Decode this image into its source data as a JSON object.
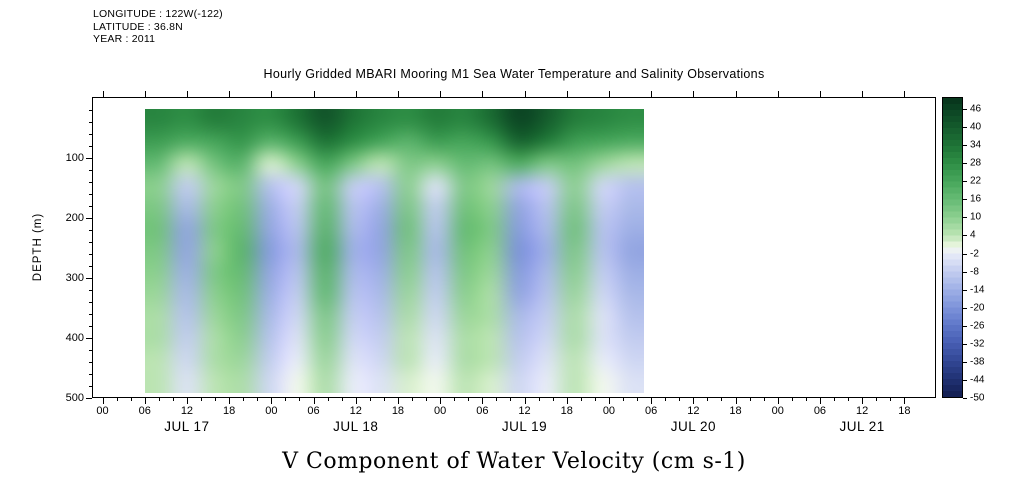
{
  "header": {
    "longitude": "LONGITUDE : 122W(-122)",
    "latitude": "LATITUDE : 36.8N",
    "year": "YEAR : 2011"
  },
  "title": "Hourly Gridded MBARI Mooring M1 Sea Water Temperature and Salinity Observations",
  "caption": "V Component of Water Velocity (cm s-1)",
  "axes": {
    "y_label": "DEPTH (m)",
    "y_ticks": [
      100,
      200,
      300,
      400,
      500
    ],
    "x_hour_labels": [
      "00",
      "06",
      "12",
      "18"
    ],
    "day_labels": [
      "JUL 17",
      "JUL 18",
      "JUL 19",
      "JUL 20",
      "JUL 21"
    ]
  },
  "colorbar": {
    "ticks": [
      46,
      40,
      34,
      28,
      22,
      16,
      10,
      4,
      -2,
      -8,
      -14,
      -20,
      -26,
      -32,
      -38,
      -44,
      -50
    ],
    "vmin": -50,
    "vmax": 50,
    "stops": [
      {
        "v": 50,
        "c": "#07331b"
      },
      {
        "v": 46,
        "c": "#0b4423"
      },
      {
        "v": 40,
        "c": "#155c2d"
      },
      {
        "v": 34,
        "c": "#1e7436"
      },
      {
        "v": 28,
        "c": "#2f8f46"
      },
      {
        "v": 22,
        "c": "#47a65b"
      },
      {
        "v": 16,
        "c": "#66bb74"
      },
      {
        "v": 10,
        "c": "#8ccf90"
      },
      {
        "v": 4,
        "c": "#bce4b4"
      },
      {
        "v": 1,
        "c": "#e4f4da"
      },
      {
        "v": 0,
        "c": "#f2f8ee"
      },
      {
        "v": -2,
        "c": "#e8ecf8"
      },
      {
        "v": -8,
        "c": "#c3cdf0"
      },
      {
        "v": -14,
        "c": "#9fb0e6"
      },
      {
        "v": -20,
        "c": "#7d93da"
      },
      {
        "v": -26,
        "c": "#5f77c9"
      },
      {
        "v": -32,
        "c": "#475eb3"
      },
      {
        "v": -38,
        "c": "#324795"
      },
      {
        "v": -44,
        "c": "#203173"
      },
      {
        "v": -50,
        "c": "#111c4f"
      }
    ]
  },
  "chart_data": {
    "type": "heatmap",
    "title": "Hourly Gridded MBARI Mooring M1 Sea Water Temperature and Salinity Observations",
    "variable": "V Component of Water Velocity",
    "units": "cm s-1",
    "year": 2011,
    "days": [
      "JUL 17",
      "JUL 18",
      "JUL 19",
      "JUL 20",
      "JUL 21"
    ],
    "x_range_hours": [
      0,
      114
    ],
    "depth_range_m": [
      0,
      500
    ],
    "value_range": [
      -50,
      50
    ],
    "x_hours_since_jul17": [
      6,
      10,
      14,
      18,
      22,
      26,
      30,
      34,
      38,
      42,
      46,
      50,
      54,
      58,
      62,
      66,
      70,
      74
    ],
    "depths_m": [
      18,
      60,
      100,
      140,
      180,
      220,
      260,
      300,
      340,
      380,
      420,
      460,
      492
    ],
    "values_cm_s": [
      [
        30,
        28,
        32,
        30,
        28,
        34,
        42,
        34,
        30,
        28,
        32,
        30,
        36,
        46,
        40,
        32,
        30,
        28
      ],
      [
        24,
        20,
        22,
        26,
        18,
        24,
        34,
        28,
        22,
        18,
        24,
        22,
        26,
        38,
        32,
        24,
        22,
        20
      ],
      [
        16,
        4,
        14,
        18,
        2,
        10,
        22,
        12,
        4,
        12,
        10,
        16,
        14,
        20,
        12,
        14,
        8,
        4
      ],
      [
        10,
        -8,
        8,
        12,
        -10,
        -6,
        14,
        -8,
        -10,
        10,
        -4,
        12,
        8,
        -12,
        -8,
        10,
        -6,
        -10
      ],
      [
        12,
        -12,
        10,
        14,
        -14,
        -8,
        16,
        -10,
        -14,
        12,
        -8,
        14,
        10,
        -16,
        -10,
        12,
        -8,
        -12
      ],
      [
        14,
        -16,
        12,
        16,
        -16,
        -10,
        18,
        -12,
        -16,
        14,
        -10,
        16,
        12,
        -18,
        -12,
        14,
        -10,
        -14
      ],
      [
        12,
        -16,
        10,
        18,
        -18,
        -12,
        20,
        -14,
        -16,
        12,
        -12,
        14,
        10,
        -20,
        -14,
        12,
        -10,
        -16
      ],
      [
        10,
        -14,
        12,
        16,
        -16,
        -10,
        18,
        -12,
        -14,
        10,
        -10,
        12,
        8,
        -18,
        -12,
        10,
        -8,
        -14
      ],
      [
        8,
        -12,
        10,
        14,
        -14,
        -8,
        16,
        -10,
        -12,
        8,
        -8,
        10,
        6,
        -16,
        -10,
        8,
        -6,
        -12
      ],
      [
        6,
        -10,
        8,
        12,
        -12,
        -6,
        12,
        -8,
        -10,
        6,
        -6,
        8,
        6,
        -12,
        -8,
        6,
        -4,
        -10
      ],
      [
        6,
        -8,
        6,
        10,
        -10,
        -4,
        10,
        -6,
        -8,
        4,
        -4,
        6,
        4,
        -10,
        -6,
        6,
        -4,
        -8
      ],
      [
        4,
        -6,
        6,
        8,
        -8,
        -2,
        8,
        -4,
        -6,
        4,
        -2,
        6,
        4,
        -8,
        -4,
        4,
        -2,
        -6
      ],
      [
        4,
        -4,
        4,
        6,
        -6,
        0,
        6,
        -2,
        -4,
        2,
        0,
        4,
        2,
        -6,
        -2,
        4,
        0,
        -4
      ]
    ],
    "legend_position": "right-colorbar",
    "grid": false
  }
}
